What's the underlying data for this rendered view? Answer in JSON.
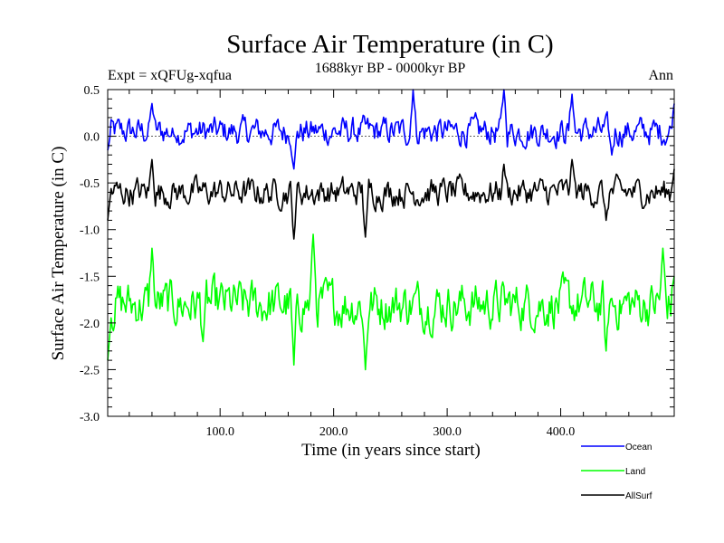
{
  "chart_data": {
    "type": "line",
    "title": "Surface Air Temperature (in C)",
    "subtitle_left": "Expt = xQFUg-xqfua",
    "subtitle_center": "1688kyr BP - 0000kyr BP",
    "subtitle_right": "Ann",
    "xlabel": "Time (in years since start)",
    "ylabel": "Surface Air Temperature (in C)",
    "xlim": [
      1,
      500
    ],
    "ylim": [
      -3.0,
      0.5
    ],
    "x_ticks": [
      100,
      200,
      300,
      400
    ],
    "x_tick_labels": [
      "100.0",
      "200.0",
      "300.0",
      "400.0"
    ],
    "y_ticks": [
      -3.0,
      -2.5,
      -2.0,
      -1.5,
      -1.0,
      -0.5,
      0.0,
      0.5
    ],
    "y_tick_labels": [
      "-3.0",
      "-2.5",
      "-2.0",
      "-1.5",
      "-1.0",
      "-0.5",
      "0.0",
      "0.5"
    ],
    "zero_line": 0.0,
    "series": [
      {
        "name": "Ocean",
        "color": "#0000ff",
        "mean": 0.05,
        "amplitude": 0.12,
        "min_observed": -0.35,
        "max_observed": 0.5,
        "anchors": [
          [
            1,
            -0.15
          ],
          [
            40,
            0.35
          ],
          [
            60,
            0.0
          ],
          [
            165,
            -0.35
          ],
          [
            270,
            0.5
          ],
          [
            350,
            0.5
          ],
          [
            410,
            0.45
          ],
          [
            445,
            -0.2
          ],
          [
            500,
            0.35
          ]
        ]
      },
      {
        "name": "Land",
        "color": "#00ff00",
        "mean": -1.8,
        "amplitude": 0.2,
        "min_observed": -2.5,
        "max_observed": -1.05,
        "anchors": [
          [
            1,
            -2.4
          ],
          [
            40,
            -1.2
          ],
          [
            85,
            -2.2
          ],
          [
            165,
            -2.45
          ],
          [
            182,
            -1.05
          ],
          [
            228,
            -2.5
          ],
          [
            440,
            -2.3
          ],
          [
            490,
            -1.2
          ],
          [
            500,
            -1.5
          ]
        ]
      },
      {
        "name": "AllSurf",
        "color": "#000000",
        "mean": -0.6,
        "amplitude": 0.12,
        "min_observed": -1.1,
        "max_observed": -0.25,
        "anchors": [
          [
            1,
            -0.9
          ],
          [
            40,
            -0.25
          ],
          [
            165,
            -1.1
          ],
          [
            228,
            -1.08
          ],
          [
            350,
            -0.3
          ],
          [
            410,
            -0.25
          ],
          [
            440,
            -0.9
          ],
          [
            500,
            -0.35
          ]
        ]
      }
    ],
    "legend": [
      "Ocean",
      "Land",
      "AllSurf"
    ],
    "legend_position": "bottom-right, outside plot"
  }
}
